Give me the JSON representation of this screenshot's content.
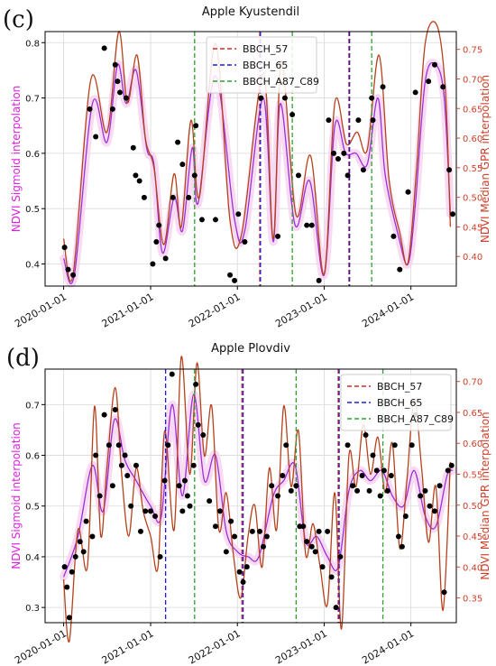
{
  "figure": {
    "background": "#ffffff"
  },
  "colors": {
    "sigmoid_line": "#9b30d9",
    "sigmoid_band": "#f6d2f0",
    "gpr_line": "#b5421c",
    "points": "#000000",
    "bbch57": "#d62728",
    "bbch65": "#1f1fd0",
    "bbchA87": "#2ca02c",
    "left_axis_label": "#e020e0",
    "right_axis_label": "#d0402a",
    "right_ticks": "#d0402a",
    "grid": "#d9d9d9"
  },
  "chart_data": [
    {
      "panel_letter": "(c)",
      "type": "line",
      "title": "Apple Kyustendil",
      "ylabel_left": "NDVI Sigmoid interpolation",
      "ylabel_right": "NDVI Median GPR interpolation",
      "xlim": [
        "2019-10-15",
        "2024-07-10"
      ],
      "ylim_left": [
        0.36,
        0.82
      ],
      "ylim_right": [
        0.35,
        0.78
      ],
      "xticks": [
        "2020-01-01",
        "2021-01-01",
        "2022-01-01",
        "2023-01-01",
        "2024-01-01"
      ],
      "yticks_left": [
        0.4,
        0.5,
        0.6,
        0.7,
        0.8
      ],
      "yticks_right": [
        0.4,
        0.45,
        0.5,
        0.55,
        0.6,
        0.65,
        0.7,
        0.75
      ],
      "grid": true,
      "legend_position": "top-center",
      "legend": [
        {
          "key": "bbch57",
          "label": "BBCH_57"
        },
        {
          "key": "bbch65",
          "label": "BBCH_65"
        },
        {
          "key": "bbchA87",
          "label": "BBCH_A87_C89"
        }
      ],
      "vlines": [
        {
          "key": "bbch57",
          "dates": [
            "2022-04-05",
            "2023-04-15"
          ]
        },
        {
          "key": "bbch65",
          "dates": [
            "2022-04-08",
            "2023-04-18"
          ]
        },
        {
          "key": "bbchA87",
          "dates": [
            "2021-07-05",
            "2022-08-20",
            "2023-07-20"
          ]
        }
      ],
      "series_sigmoid": {
        "x": [
          "2020-01-01",
          "2020-02-15",
          "2020-05-01",
          "2020-07-01",
          "2020-08-15",
          "2020-09-20",
          "2020-11-01",
          "2020-12-15",
          "2021-01-15",
          "2021-02-20",
          "2021-04-10",
          "2021-05-15",
          "2021-06-25",
          "2021-07-20",
          "2021-10-01",
          "2021-12-20",
          "2022-02-01",
          "2022-04-20",
          "2022-06-01",
          "2022-07-01",
          "2022-09-01",
          "2022-11-01",
          "2023-01-01",
          "2023-02-15",
          "2023-04-01",
          "2023-05-15",
          "2023-07-01",
          "2023-08-15",
          "2023-09-15",
          "2023-11-10",
          "2023-12-20",
          "2024-01-20",
          "2024-03-01",
          "2024-04-15",
          "2024-05-20",
          "2024-06-15"
        ],
        "y": [
          0.41,
          0.38,
          0.69,
          0.62,
          0.76,
          0.69,
          0.75,
          0.61,
          0.58,
          0.42,
          0.52,
          0.46,
          0.61,
          0.51,
          0.74,
          0.48,
          0.46,
          0.7,
          0.44,
          0.69,
          0.47,
          0.55,
          0.38,
          0.65,
          0.6,
          0.6,
          0.58,
          0.7,
          0.56,
          0.45,
          0.4,
          0.51,
          0.73,
          0.76,
          0.7,
          0.49
        ]
      },
      "series_gpr": {
        "x": [
          "2020-01-01",
          "2020-02-10",
          "2020-04-25",
          "2020-07-01",
          "2020-08-20",
          "2020-09-25",
          "2020-11-05",
          "2020-12-10",
          "2021-01-15",
          "2021-02-25",
          "2021-04-10",
          "2021-05-10",
          "2021-06-20",
          "2021-07-25",
          "2021-10-01",
          "2021-12-01",
          "2022-01-20",
          "2022-04-20",
          "2022-06-01",
          "2022-07-05",
          "2022-09-05",
          "2022-11-05",
          "2023-01-01",
          "2023-02-15",
          "2023-04-05",
          "2023-05-20",
          "2023-07-01",
          "2023-08-20",
          "2023-10-01",
          "2023-11-15",
          "2023-12-20",
          "2024-01-25",
          "2024-03-01",
          "2024-04-20",
          "2024-05-25",
          "2024-06-15"
        ],
        "y": [
          0.43,
          0.37,
          0.7,
          0.61,
          0.78,
          0.66,
          0.74,
          0.6,
          0.55,
          0.42,
          0.54,
          0.45,
          0.63,
          0.5,
          0.76,
          0.46,
          0.44,
          0.71,
          0.43,
          0.73,
          0.47,
          0.57,
          0.37,
          0.66,
          0.59,
          0.61,
          0.58,
          0.74,
          0.53,
          0.44,
          0.39,
          0.55,
          0.76,
          0.79,
          0.68,
          0.45
        ]
      },
      "points": {
        "x": [
          "2020-01-05",
          "2020-01-20",
          "2020-02-10",
          "2020-04-20",
          "2020-05-15",
          "2020-06-20",
          "2020-07-25",
          "2020-08-05",
          "2020-08-15",
          "2020-08-25",
          "2020-09-20",
          "2020-10-20",
          "2020-10-30",
          "2020-11-15",
          "2020-12-05",
          "2021-01-10",
          "2021-01-25",
          "2021-02-05",
          "2021-03-05",
          "2021-04-05",
          "2021-04-25",
          "2021-05-15",
          "2021-06-10",
          "2021-07-05",
          "2021-07-10",
          "2021-08-05",
          "2021-10-01",
          "2021-12-01",
          "2021-12-20",
          "2022-01-05",
          "2022-02-01",
          "2022-04-10",
          "2022-06-20",
          "2022-07-20",
          "2022-08-20",
          "2022-09-15",
          "2022-10-20",
          "2022-11-10",
          "2022-12-10",
          "2023-01-20",
          "2023-02-10",
          "2023-03-01",
          "2023-03-25",
          "2023-04-10",
          "2023-05-25",
          "2023-06-15",
          "2023-07-20",
          "2023-07-25",
          "2023-09-05",
          "2023-10-20",
          "2023-11-15",
          "2023-12-20",
          "2024-01-20",
          "2024-03-15",
          "2024-04-10",
          "2024-05-15",
          "2024-06-10",
          "2024-06-25"
        ],
        "y": [
          0.43,
          0.39,
          0.38,
          0.68,
          0.63,
          0.79,
          0.68,
          0.76,
          0.73,
          0.71,
          0.7,
          0.61,
          0.56,
          0.55,
          0.52,
          0.4,
          0.44,
          0.47,
          0.41,
          0.52,
          0.62,
          0.58,
          0.52,
          0.56,
          0.65,
          0.48,
          0.48,
          0.38,
          0.37,
          0.49,
          0.44,
          0.7,
          0.45,
          0.7,
          0.67,
          0.56,
          0.47,
          0.47,
          0.37,
          0.66,
          0.6,
          0.59,
          0.6,
          0.56,
          0.66,
          0.57,
          0.7,
          0.66,
          0.72,
          0.45,
          0.39,
          0.53,
          0.71,
          0.73,
          0.76,
          0.72,
          0.57,
          0.49
        ]
      }
    },
    {
      "panel_letter": "(d)",
      "type": "line",
      "title": "Apple Plovdiv",
      "ylabel_left": "NDVI Sigmoid interpolation",
      "ylabel_right": "NDVI Median GPR interpolation",
      "xlim": [
        "2019-10-15",
        "2024-07-10"
      ],
      "ylim_left": [
        0.27,
        0.77
      ],
      "ylim_right": [
        0.31,
        0.72
      ],
      "xticks": [
        "2020-01-01",
        "2021-01-01",
        "2022-01-01",
        "2023-01-01",
        "2024-01-01"
      ],
      "yticks_left": [
        0.3,
        0.4,
        0.5,
        0.6,
        0.7
      ],
      "yticks_right": [
        0.35,
        0.4,
        0.45,
        0.5,
        0.55,
        0.6,
        0.65,
        0.7
      ],
      "grid": true,
      "legend_position": "top-right",
      "legend": [
        {
          "key": "bbch57",
          "label": "BBCH_57"
        },
        {
          "key": "bbch65",
          "label": "BBCH_65"
        },
        {
          "key": "bbchA87",
          "label": "BBCH_A87_C89"
        }
      ],
      "vlines": [
        {
          "key": "bbch57",
          "dates": [
            "2022-01-20",
            "2023-03-01"
          ]
        },
        {
          "key": "bbch65",
          "dates": [
            "2021-03-05",
            "2022-01-25",
            "2023-03-05"
          ]
        },
        {
          "key": "bbchA87",
          "dates": [
            "2021-07-05",
            "2022-09-05",
            "2023-09-05"
          ]
        }
      ],
      "series_sigmoid": {
        "x": [
          "2020-01-01",
          "2020-03-01",
          "2020-05-01",
          "2020-06-15",
          "2020-08-01",
          "2020-09-15",
          "2020-11-01",
          "2021-01-01",
          "2021-02-15",
          "2021-04-01",
          "2021-05-15",
          "2021-07-01",
          "2021-08-15",
          "2021-10-01",
          "2021-11-15",
          "2022-01-01",
          "2022-02-15",
          "2022-04-01",
          "2022-06-01",
          "2022-07-15",
          "2022-09-01",
          "2022-10-15",
          "2022-12-01",
          "2023-01-15",
          "2023-03-01",
          "2023-04-15",
          "2023-06-01",
          "2023-07-15",
          "2023-09-01",
          "2023-10-15",
          "2023-12-01",
          "2024-01-15",
          "2024-03-01",
          "2024-04-15",
          "2024-06-01",
          "2024-06-25"
        ],
        "y": [
          0.36,
          0.44,
          0.58,
          0.49,
          0.67,
          0.59,
          0.55,
          0.5,
          0.48,
          0.7,
          0.52,
          0.72,
          0.55,
          0.6,
          0.45,
          0.41,
          0.4,
          0.4,
          0.52,
          0.55,
          0.58,
          0.43,
          0.44,
          0.4,
          0.38,
          0.53,
          0.57,
          0.55,
          0.57,
          0.52,
          0.5,
          0.57,
          0.48,
          0.46,
          0.56,
          0.57
        ]
      },
      "series_gpr": {
        "x": [
          "2020-01-01",
          "2020-01-25",
          "2020-03-01",
          "2020-04-10",
          "2020-05-10",
          "2020-06-05",
          "2020-07-01",
          "2020-08-05",
          "2020-09-01",
          "2020-10-01",
          "2020-11-01",
          "2020-12-01",
          "2021-01-01",
          "2021-02-01",
          "2021-03-01",
          "2021-04-10",
          "2021-05-10",
          "2021-06-15",
          "2021-07-15",
          "2021-08-15",
          "2021-09-15",
          "2021-10-15",
          "2021-11-15",
          "2021-12-15",
          "2022-01-15",
          "2022-02-15",
          "2022-03-15",
          "2022-04-15",
          "2022-05-15",
          "2022-06-15",
          "2022-07-15",
          "2022-08-15",
          "2022-09-15",
          "2022-10-15",
          "2022-11-15",
          "2022-12-15",
          "2023-01-15",
          "2023-02-15",
          "2023-03-15",
          "2023-04-15",
          "2023-05-15",
          "2023-06-15",
          "2023-07-15",
          "2023-08-15",
          "2023-09-15",
          "2023-10-15",
          "2023-11-15",
          "2023-12-15",
          "2024-01-15",
          "2024-02-15",
          "2024-03-15",
          "2024-04-15",
          "2024-05-15",
          "2024-06-15"
        ],
        "y": [
          0.38,
          0.28,
          0.46,
          0.4,
          0.66,
          0.45,
          0.56,
          0.69,
          0.55,
          0.45,
          0.56,
          0.49,
          0.45,
          0.4,
          0.62,
          0.46,
          0.74,
          0.55,
          0.73,
          0.58,
          0.66,
          0.46,
          0.52,
          0.42,
          0.35,
          0.45,
          0.5,
          0.4,
          0.56,
          0.46,
          0.66,
          0.53,
          0.62,
          0.42,
          0.47,
          0.4,
          0.34,
          0.52,
          0.3,
          0.58,
          0.53,
          0.63,
          0.55,
          0.61,
          0.52,
          0.6,
          0.43,
          0.54,
          0.67,
          0.56,
          0.44,
          0.53,
          0.33,
          0.57
        ]
      },
      "points": {
        "x": [
          "2020-01-05",
          "2020-01-15",
          "2020-01-25",
          "2020-02-05",
          "2020-02-20",
          "2020-03-10",
          "2020-03-25",
          "2020-04-05",
          "2020-05-01",
          "2020-05-15",
          "2020-06-01",
          "2020-06-20",
          "2020-07-10",
          "2020-07-25",
          "2020-08-05",
          "2020-08-20",
          "2020-09-01",
          "2020-09-15",
          "2020-09-25",
          "2020-10-10",
          "2020-11-01",
          "2020-11-20",
          "2020-12-10",
          "2021-01-01",
          "2021-01-20",
          "2021-02-10",
          "2021-03-01",
          "2021-03-15",
          "2021-04-01",
          "2021-05-01",
          "2021-05-15",
          "2021-05-25",
          "2021-06-05",
          "2021-06-15",
          "2021-07-01",
          "2021-07-10",
          "2021-07-20",
          "2021-08-10",
          "2021-09-05",
          "2021-10-01",
          "2021-10-20",
          "2021-11-15",
          "2021-12-05",
          "2021-12-20",
          "2022-01-10",
          "2022-01-25",
          "2022-02-10",
          "2022-03-05",
          "2022-04-05",
          "2022-04-20",
          "2022-05-05",
          "2022-05-25",
          "2022-06-20",
          "2022-07-10",
          "2022-07-25",
          "2022-08-15",
          "2022-09-05",
          "2022-09-20",
          "2022-10-05",
          "2022-10-20",
          "2022-11-10",
          "2022-11-25",
          "2022-12-10",
          "2022-12-25",
          "2023-01-15",
          "2023-02-01",
          "2023-02-20",
          "2023-03-10",
          "2023-04-10",
          "2023-05-01",
          "2023-05-20",
          "2023-06-10",
          "2023-06-25",
          "2023-07-10",
          "2023-07-25",
          "2023-08-10",
          "2023-08-25",
          "2023-09-10",
          "2023-09-25",
          "2023-10-10",
          "2023-10-25",
          "2023-11-10",
          "2023-11-25",
          "2023-12-10",
          "2024-01-05",
          "2024-01-20",
          "2024-02-10",
          "2024-03-01",
          "2024-03-20",
          "2024-04-10",
          "2024-05-01",
          "2024-05-20",
          "2024-06-05",
          "2024-06-20"
        ],
        "y": [
          0.38,
          0.34,
          0.28,
          0.37,
          0.4,
          0.43,
          0.41,
          0.47,
          0.44,
          0.6,
          0.52,
          0.68,
          0.62,
          0.54,
          0.69,
          0.62,
          0.58,
          0.6,
          0.56,
          0.5,
          0.58,
          0.45,
          0.49,
          0.49,
          0.48,
          0.4,
          0.55,
          0.62,
          0.76,
          0.54,
          0.49,
          0.55,
          0.52,
          0.5,
          0.58,
          0.74,
          0.66,
          0.64,
          0.51,
          0.46,
          0.49,
          0.41,
          0.47,
          0.44,
          0.37,
          0.35,
          0.38,
          0.45,
          0.45,
          0.42,
          0.44,
          0.54,
          0.52,
          0.56,
          0.62,
          0.53,
          0.54,
          0.46,
          0.46,
          0.43,
          0.42,
          0.41,
          0.45,
          0.38,
          0.45,
          0.36,
          0.3,
          0.4,
          0.62,
          0.54,
          0.53,
          0.56,
          0.64,
          0.53,
          0.6,
          0.57,
          0.52,
          0.57,
          0.53,
          0.56,
          0.62,
          0.44,
          0.42,
          0.48,
          0.62,
          0.68,
          0.52,
          0.53,
          0.5,
          0.49,
          0.54,
          0.33,
          0.57,
          0.58
        ]
      }
    }
  ]
}
